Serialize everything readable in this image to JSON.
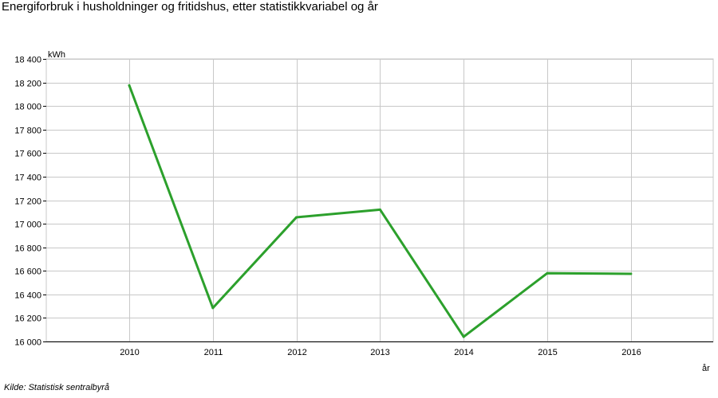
{
  "title": "Energiforbruk i husholdninger og fritidshus, etter statistikkvariabel og år",
  "source": "Kilde:  Statistisk sentralbyrå",
  "chart_data": {
    "type": "line",
    "title": "Energiforbruk i husholdninger og fritidshus, etter statistikkvariabel og år",
    "xlabel": "år",
    "ylabel": "kWh",
    "categories": [
      "2010",
      "2011",
      "2012",
      "2013",
      "2014",
      "2015",
      "2016"
    ],
    "series": [
      {
        "values": [
          18175,
          16285,
          17055,
          17120,
          16040,
          16580,
          16575
        ],
        "color": "#2ca02c"
      }
    ],
    "ylim": [
      16000,
      18400
    ],
    "yticks": [
      16000,
      16200,
      16400,
      16600,
      16800,
      17000,
      17200,
      17400,
      17600,
      17800,
      18000,
      18200,
      18400
    ],
    "ytick_labels": [
      "16 000",
      "16 200",
      "16 400",
      "16 600",
      "16 800",
      "17 000",
      "17 200",
      "17 400",
      "17 600",
      "17 800",
      "18 000",
      "18 200",
      "18 400"
    ],
    "grid": true,
    "legend": "none"
  }
}
